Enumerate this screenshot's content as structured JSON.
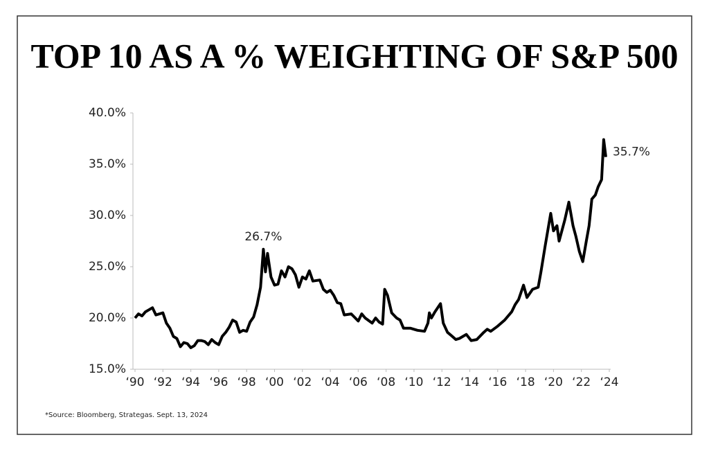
{
  "chart_data": {
    "type": "line",
    "title": "TOP 10 AS A % WEIGHTING OF S&P 500",
    "source": "*Source: Bloomberg, Strategas. Sept. 13, 2024",
    "x": [
      1990.0,
      1990.25,
      1990.5,
      1990.75,
      1991.0,
      1991.25,
      1991.5,
      1991.75,
      1992.0,
      1992.25,
      1992.5,
      1992.75,
      1993.0,
      1993.25,
      1993.5,
      1993.75,
      1994.0,
      1994.25,
      1994.5,
      1994.75,
      1995.0,
      1995.25,
      1995.5,
      1995.75,
      1996.0,
      1996.25,
      1996.5,
      1996.75,
      1997.0,
      1997.25,
      1997.5,
      1997.75,
      1998.0,
      1998.25,
      1998.5,
      1998.75,
      1999.0,
      1999.2,
      1999.35,
      1999.5,
      1999.75,
      2000.0,
      2000.25,
      2000.5,
      2000.75,
      2001.0,
      2001.25,
      2001.5,
      2001.75,
      2002.0,
      2002.25,
      2002.5,
      2002.75,
      2003.25,
      2003.5,
      2003.75,
      2004.0,
      2004.25,
      2004.5,
      2004.75,
      2005.0,
      2005.5,
      2006.0,
      2006.25,
      2006.5,
      2007.0,
      2007.25,
      2007.5,
      2007.75,
      2007.9,
      2008.1,
      2008.4,
      2008.75,
      2009.0,
      2009.25,
      2009.75,
      2010.25,
      2010.75,
      2011.0,
      2011.1,
      2011.25,
      2011.5,
      2011.9,
      2012.1,
      2012.4,
      2012.75,
      2013.0,
      2013.25,
      2013.5,
      2013.75,
      2014.1,
      2014.5,
      2015.0,
      2015.25,
      2015.5,
      2016.0,
      2016.5,
      2017.0,
      2017.25,
      2017.5,
      2017.85,
      2018.1,
      2018.5,
      2018.9,
      2019.1,
      2019.4,
      2019.8,
      2020.0,
      2020.25,
      2020.4,
      2020.8,
      2021.1,
      2021.4,
      2021.6,
      2021.85,
      2022.1,
      2022.35,
      2022.55,
      2022.75,
      2023.0,
      2023.2,
      2023.45,
      2023.6,
      2023.75
    ],
    "series": [
      {
        "color": "#000000",
        "values": [
          20.0,
          20.4,
          20.2,
          20.6,
          20.8,
          21.0,
          20.3,
          20.4,
          20.5,
          19.5,
          19.0,
          18.2,
          18.0,
          17.2,
          17.6,
          17.5,
          17.1,
          17.3,
          17.8,
          17.8,
          17.7,
          17.4,
          17.9,
          17.6,
          17.4,
          18.2,
          18.6,
          19.1,
          19.8,
          19.6,
          18.6,
          18.8,
          18.7,
          19.6,
          20.1,
          21.3,
          23.0,
          26.7,
          24.5,
          26.3,
          24.0,
          23.2,
          23.3,
          24.6,
          24.0,
          25.0,
          24.8,
          24.2,
          23.0,
          24.0,
          23.8,
          24.6,
          23.6,
          23.7,
          22.8,
          22.5,
          22.7,
          22.2,
          21.5,
          21.4,
          20.3,
          20.4,
          19.7,
          20.4,
          20.0,
          19.5,
          20.0,
          19.6,
          19.4,
          22.8,
          22.2,
          20.5,
          20.0,
          19.8,
          19.0,
          19.0,
          18.8,
          18.7,
          19.5,
          20.5,
          20.0,
          20.6,
          21.4,
          19.5,
          18.6,
          18.2,
          17.9,
          18.0,
          18.2,
          18.4,
          17.8,
          17.9,
          18.6,
          18.9,
          18.7,
          19.2,
          19.8,
          20.6,
          21.3,
          21.8,
          23.2,
          22.0,
          22.8,
          23.0,
          24.5,
          27.0,
          30.2,
          28.5,
          29.0,
          27.5,
          29.5,
          31.3,
          29.0,
          28.0,
          26.5,
          25.5,
          27.5,
          29.0,
          31.6,
          32.0,
          32.8,
          33.5,
          37.4,
          35.7
        ]
      }
    ],
    "annotations": [
      {
        "text": "26.7%",
        "x": 1999.2,
        "y": 26.7
      },
      {
        "text": "35.7%",
        "x": 2023.75,
        "y": 35.7
      }
    ],
    "xlim": [
      1990,
      2024
    ],
    "xticks": [
      {
        "value": 1990,
        "label": "‘90"
      },
      {
        "value": 1992,
        "label": "‘92"
      },
      {
        "value": 1994,
        "label": "‘94"
      },
      {
        "value": 1996,
        "label": "‘96"
      },
      {
        "value": 1998,
        "label": "‘98"
      },
      {
        "value": 2000,
        "label": "‘00"
      },
      {
        "value": 2002,
        "label": "‘02"
      },
      {
        "value": 2004,
        "label": "‘04"
      },
      {
        "value": 2006,
        "label": "‘06"
      },
      {
        "value": 2008,
        "label": "‘08"
      },
      {
        "value": 2010,
        "label": "‘10"
      },
      {
        "value": 2012,
        "label": "‘12"
      },
      {
        "value": 2014,
        "label": "‘14"
      },
      {
        "value": 2016,
        "label": "‘16"
      },
      {
        "value": 2018,
        "label": "‘18"
      },
      {
        "value": 2020,
        "label": "‘20"
      },
      {
        "value": 2022,
        "label": "‘22"
      },
      {
        "value": 2024,
        "label": "‘24"
      }
    ],
    "ylim": [
      15,
      40
    ],
    "yticks": [
      {
        "value": 15,
        "label": "15.0%"
      },
      {
        "value": 20,
        "label": "20.0%"
      },
      {
        "value": 25,
        "label": "25.0%"
      },
      {
        "value": 30,
        "label": "30.0%"
      },
      {
        "value": 35,
        "label": "35.0%"
      },
      {
        "value": 40,
        "label": "40.0%"
      }
    ],
    "grid": false
  }
}
